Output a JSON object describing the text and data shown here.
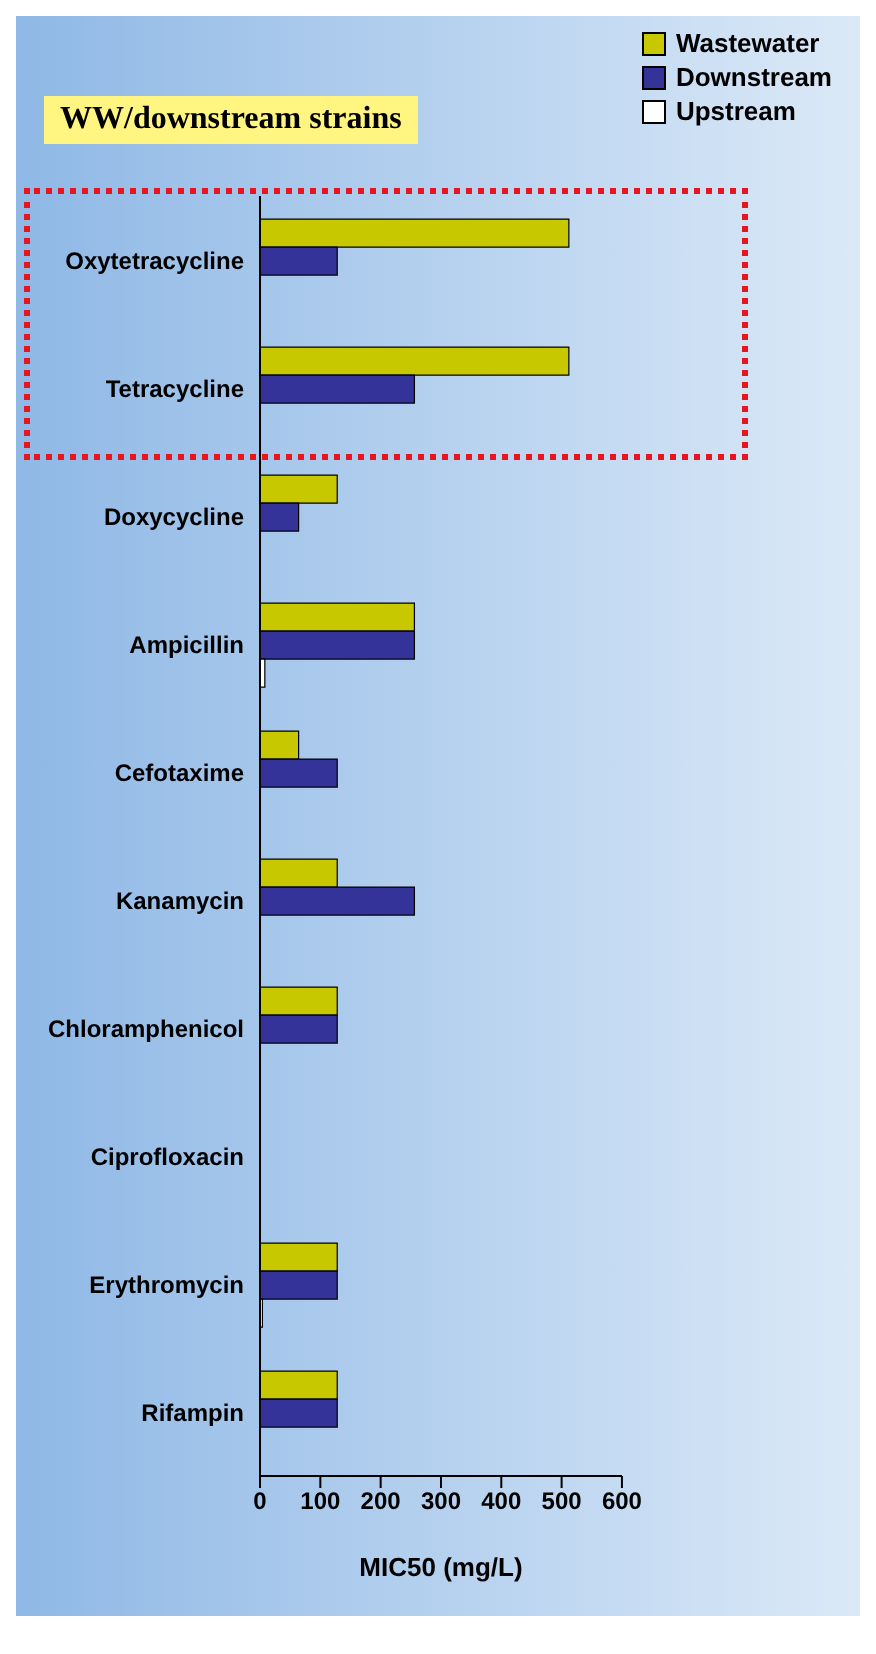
{
  "chart_data": {
    "type": "bar",
    "orientation": "horizontal",
    "xlabel": "MIC50 (mg/L)",
    "categories": [
      "Oxytetracycline",
      "Tetracycline",
      "Doxycycline",
      "Ampicillin",
      "Cefotaxime",
      "Kanamycin",
      "Chloramphenicol",
      "Ciprofloxacin",
      "Erythromycin",
      "Rifampin"
    ],
    "series": [
      {
        "name": "Wastewater",
        "color": "#c8c800",
        "values": [
          512,
          512,
          128,
          256,
          64,
          128,
          128,
          null,
          128,
          128
        ]
      },
      {
        "name": "Downstream",
        "color": "#33339a",
        "values": [
          128,
          256,
          64,
          256,
          128,
          256,
          128,
          null,
          128,
          128
        ]
      },
      {
        "name": "Upstream",
        "color": "#ffffff",
        "values": [
          null,
          null,
          null,
          8,
          null,
          null,
          null,
          null,
          4,
          null
        ]
      }
    ],
    "xlim": [
      0,
      600
    ],
    "xticks": [
      0,
      100,
      200,
      300,
      400,
      500,
      600
    ],
    "annotations": [
      "WW/downstream strains"
    ],
    "legend": "top right",
    "grid": false
  }
}
